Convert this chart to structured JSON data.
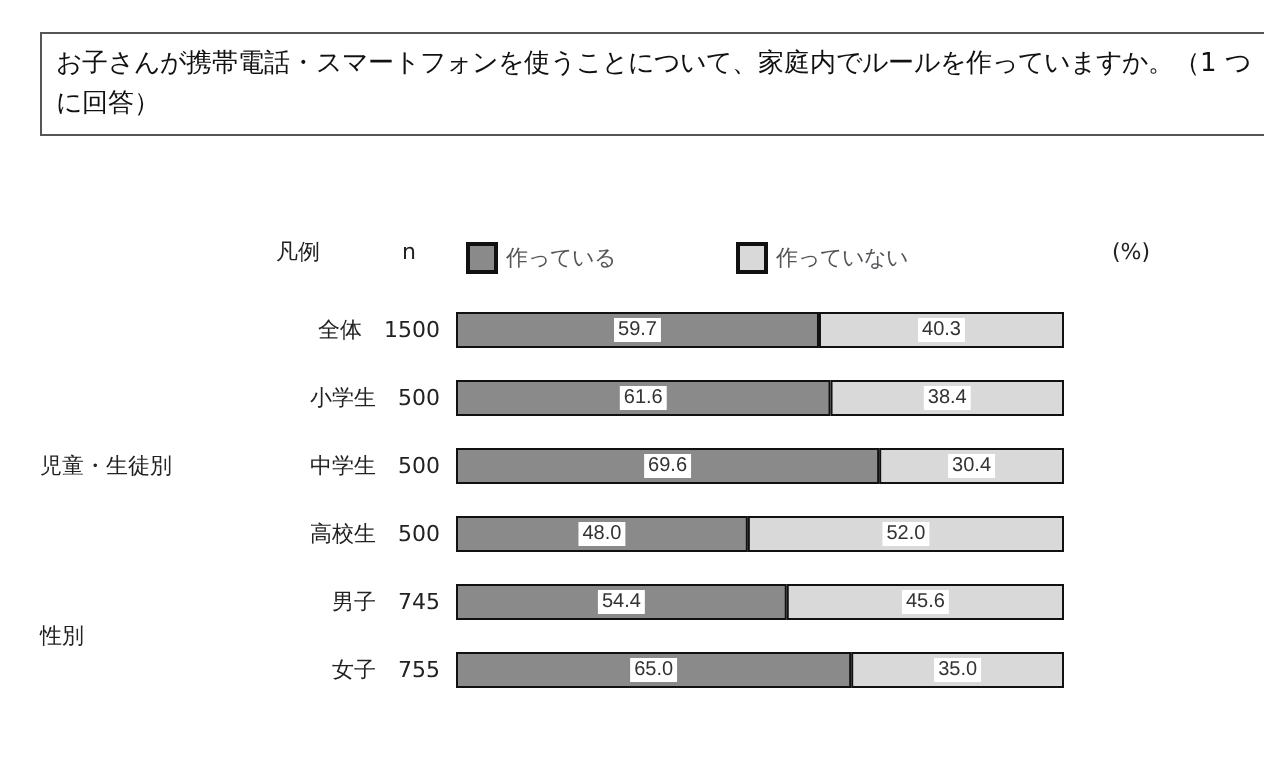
{
  "chart_data": {
    "type": "bar",
    "orientation": "horizontal",
    "stacked": true,
    "title": "お子さんが携帯電話・スマートフォンを使うことについて、家庭内でルールを作っていますか。（1 つに回答）",
    "categories": [
      "全体　1500",
      "小学生　500",
      "中学生　500",
      "高校生　500",
      "男子　745",
      "女子　755"
    ],
    "series": [
      {
        "name": "作っている",
        "color": "#8a8a8a",
        "values": [
          59.7,
          61.6,
          69.6,
          48.0,
          54.4,
          65.0
        ],
        "value_labels": [
          "59.7",
          "61.6",
          "69.6",
          "48.0",
          "54.4",
          "65.0"
        ]
      },
      {
        "name": "作っていない",
        "color": "#d9d9d9",
        "values": [
          40.3,
          38.4,
          30.4,
          52.0,
          45.6,
          35.0
        ],
        "value_labels": [
          "40.3",
          "38.4",
          "30.4",
          "52.0",
          "45.6",
          "35.0"
        ]
      }
    ],
    "xlim": [
      0,
      100
    ],
    "tick_labels": "y",
    "grid": false,
    "legend": "top",
    "legend_title": "凡例",
    "annotations": [
      "児童・生徒別",
      "性別",
      "n",
      "(%)"
    ]
  }
}
